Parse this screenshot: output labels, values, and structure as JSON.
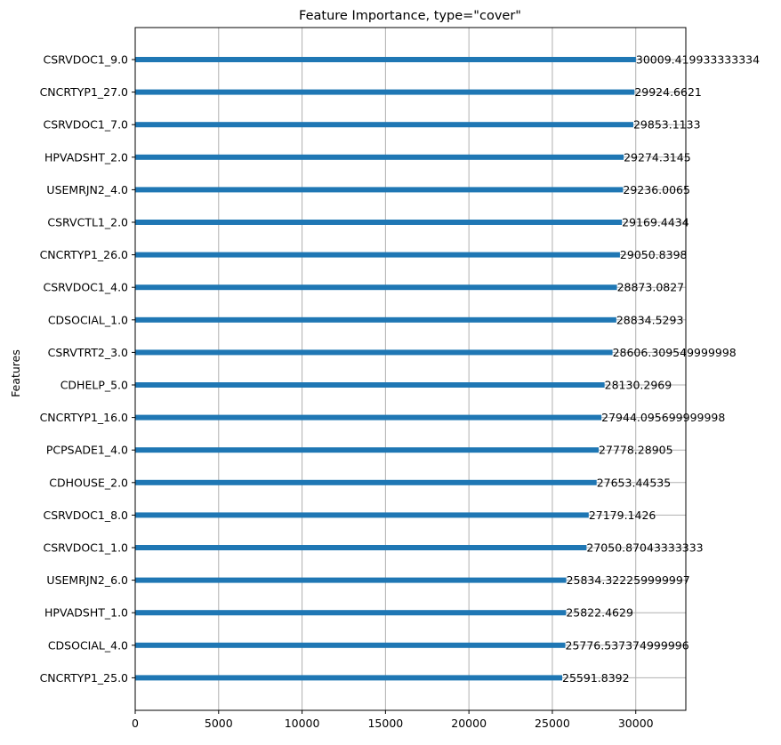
{
  "chart_data": {
    "type": "bar",
    "orientation": "horizontal",
    "title": "Feature Importance, type=\"cover\"",
    "xlabel": "",
    "ylabel": "Features",
    "xlim": [
      0,
      33000
    ],
    "xticks": [
      0,
      5000,
      10000,
      15000,
      20000,
      25000,
      30000
    ],
    "grid": true,
    "bar_color": "#1f77b4",
    "categories": [
      "CSRVDOC1_9.0",
      "CNCRTYP1_27.0",
      "CSRVDOC1_7.0",
      "HPVADSHT_2.0",
      "USEMRJN2_4.0",
      "CSRVCTL1_2.0",
      "CNCRTYP1_26.0",
      "CSRVDOC1_4.0",
      "CDSOCIAL_1.0",
      "CSRVTRT2_3.0",
      "CDHELP_5.0",
      "CNCRTYP1_16.0",
      "PCPSADE1_4.0",
      "CDHOUSE_2.0",
      "CSRVDOC1_8.0",
      "CSRVDOC1_1.0",
      "USEMRJN2_6.0",
      "HPVADSHT_1.0",
      "CDSOCIAL_4.0",
      "CNCRTYP1_25.0"
    ],
    "values": [
      30009.419933333334,
      29924.6621,
      29853.1133,
      29274.3145,
      29236.0065,
      29169.4434,
      29050.8398,
      28873.0827,
      28834.5293,
      28606.309549999998,
      28130.2969,
      27944.095699999998,
      27778.28905,
      27653.44535,
      27179.1426,
      27050.87043333333,
      25834.322259999997,
      25822.4629,
      25776.537374999996,
      25591.8392
    ],
    "value_labels": [
      "30009.419933333334",
      "29924.6621",
      "29853.1133",
      "29274.3145",
      "29236.0065",
      "29169.4434",
      "29050.8398",
      "28873.0827",
      "28834.5293",
      "28606.309549999998",
      "28130.2969",
      "27944.095699999998",
      "27778.28905",
      "27653.44535",
      "27179.1426",
      "27050.87043333333",
      "25834.322259999997",
      "25822.4629",
      "25776.537374999996",
      "25591.8392"
    ]
  }
}
